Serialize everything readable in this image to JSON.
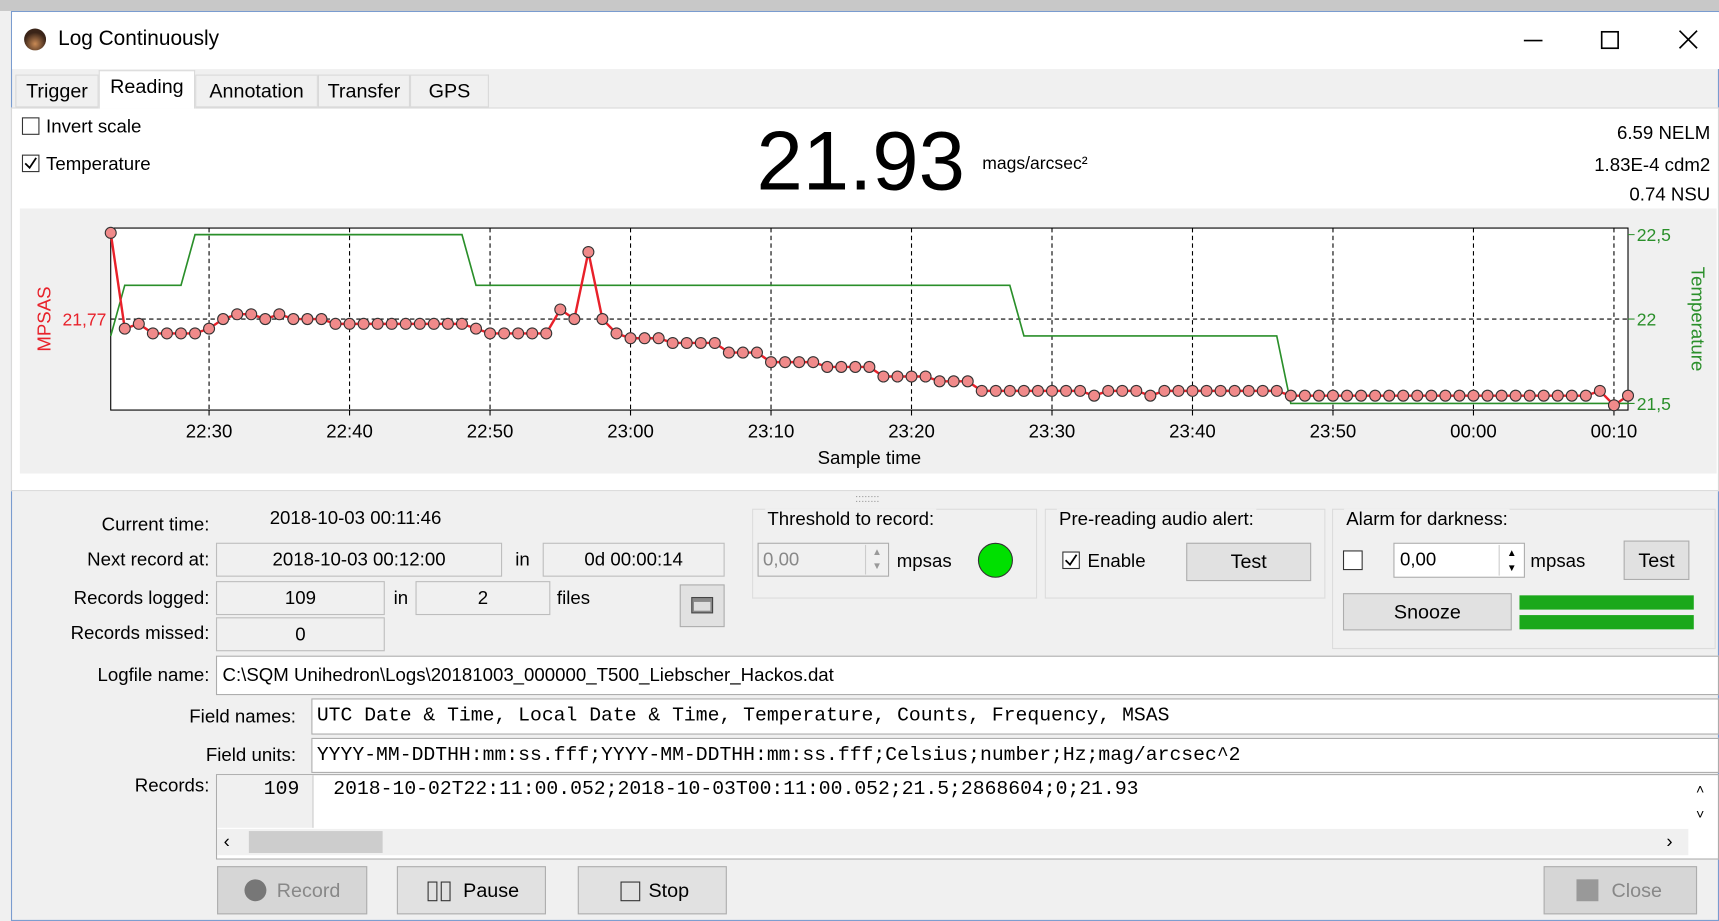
{
  "window": {
    "title": "Log Continuously",
    "tabs": [
      "Trigger",
      "Reading",
      "Annotation",
      "Transfer",
      "GPS"
    ],
    "active_tab": 1
  },
  "reading": {
    "invert_scale": {
      "label": "Invert scale",
      "checked": false
    },
    "temperature": {
      "label": "Temperature",
      "checked": true
    },
    "value": "21.93",
    "unit": "mags/arcsec²",
    "nelm": "6.59 NELM",
    "cdm2": "1.83E-4 cdm2",
    "nsu": "0.74 NSU"
  },
  "chart_data": {
    "type": "line",
    "xlabel": "Sample time",
    "ylabel": "MPSAS",
    "y2label": "Temperature",
    "grid": true,
    "x": [
      "22:23",
      "22:24",
      "22:25",
      "22:26",
      "22:27",
      "22:28",
      "22:29",
      "22:30",
      "22:31",
      "22:32",
      "22:33",
      "22:34",
      "22:35",
      "22:36",
      "22:37",
      "22:38",
      "22:39",
      "22:40",
      "22:41",
      "22:42",
      "22:43",
      "22:44",
      "22:45",
      "22:46",
      "22:47",
      "22:48",
      "22:49",
      "22:50",
      "22:51",
      "22:52",
      "22:53",
      "22:54",
      "22:55",
      "22:56",
      "22:57",
      "22:58",
      "22:59",
      "23:00",
      "23:01",
      "23:02",
      "23:03",
      "23:04",
      "23:05",
      "23:06",
      "23:07",
      "23:08",
      "23:09",
      "23:10",
      "23:11",
      "23:12",
      "23:13",
      "23:14",
      "23:15",
      "23:16",
      "23:17",
      "23:18",
      "23:19",
      "23:20",
      "23:21",
      "23:22",
      "23:23",
      "23:24",
      "23:25",
      "23:26",
      "23:27",
      "23:28",
      "23:29",
      "23:30",
      "23:31",
      "23:32",
      "23:33",
      "23:34",
      "23:35",
      "23:36",
      "23:37",
      "23:38",
      "23:39",
      "23:40",
      "23:41",
      "23:42",
      "23:43",
      "23:44",
      "23:45",
      "23:46",
      "23:47",
      "23:48",
      "23:49",
      "23:50",
      "23:51",
      "23:52",
      "23:53",
      "23:54",
      "23:55",
      "23:56",
      "23:57",
      "23:58",
      "23:59",
      "00:00",
      "00:01",
      "00:02",
      "00:03",
      "00:04",
      "00:05",
      "00:06",
      "00:07",
      "00:08",
      "00:09",
      "00:10",
      "00:11"
    ],
    "series": [
      {
        "name": "MPSAS",
        "color": "#e8212a",
        "marker_color": "#f08a8a",
        "values": [
          21.59,
          21.79,
          21.78,
          21.8,
          21.8,
          21.8,
          21.8,
          21.79,
          21.77,
          21.76,
          21.76,
          21.77,
          21.76,
          21.77,
          21.77,
          21.77,
          21.78,
          21.78,
          21.78,
          21.78,
          21.78,
          21.78,
          21.78,
          21.78,
          21.78,
          21.78,
          21.79,
          21.8,
          21.8,
          21.8,
          21.8,
          21.8,
          21.75,
          21.77,
          21.63,
          21.77,
          21.8,
          21.81,
          21.81,
          21.81,
          21.82,
          21.82,
          21.82,
          21.82,
          21.84,
          21.84,
          21.84,
          21.86,
          21.86,
          21.86,
          21.86,
          21.87,
          21.87,
          21.87,
          21.87,
          21.89,
          21.89,
          21.89,
          21.89,
          21.9,
          21.9,
          21.9,
          21.92,
          21.92,
          21.92,
          21.92,
          21.92,
          21.92,
          21.92,
          21.92,
          21.93,
          21.92,
          21.92,
          21.92,
          21.93,
          21.92,
          21.92,
          21.92,
          21.92,
          21.92,
          21.92,
          21.92,
          21.92,
          21.92,
          21.93,
          21.93,
          21.93,
          21.93,
          21.93,
          21.93,
          21.93,
          21.93,
          21.93,
          21.93,
          21.93,
          21.93,
          21.93,
          21.93,
          21.93,
          21.93,
          21.93,
          21.93,
          21.93,
          21.93,
          21.93,
          21.93,
          21.92,
          21.95,
          21.93
        ]
      },
      {
        "name": "Temperature",
        "color": "#2a8f2a",
        "axis": "y2",
        "values": [
          21.9,
          22.2,
          22.2,
          22.2,
          22.2,
          22.2,
          22.5,
          22.5,
          22.5,
          22.5,
          22.5,
          22.5,
          22.5,
          22.5,
          22.5,
          22.5,
          22.5,
          22.5,
          22.5,
          22.5,
          22.5,
          22.5,
          22.5,
          22.5,
          22.5,
          22.5,
          22.2,
          22.2,
          22.2,
          22.2,
          22.2,
          22.2,
          22.2,
          22.2,
          22.2,
          22.2,
          22.2,
          22.2,
          22.2,
          22.2,
          22.2,
          22.2,
          22.2,
          22.2,
          22.2,
          22.2,
          22.2,
          22.2,
          22.2,
          22.2,
          22.2,
          22.2,
          22.2,
          22.2,
          22.2,
          22.2,
          22.2,
          22.2,
          22.2,
          22.2,
          22.2,
          22.2,
          22.2,
          22.2,
          22.2,
          21.9,
          21.9,
          21.9,
          21.9,
          21.9,
          21.9,
          21.9,
          21.9,
          21.9,
          21.9,
          21.9,
          21.9,
          21.9,
          21.9,
          21.9,
          21.9,
          21.9,
          21.9,
          21.9,
          21.5,
          21.5,
          21.5,
          21.5,
          21.5,
          21.5,
          21.5,
          21.5,
          21.5,
          21.5,
          21.5,
          21.5,
          21.5,
          21.5,
          21.5,
          21.5,
          21.5,
          21.5,
          21.5,
          21.5,
          21.5,
          21.5,
          21.5,
          21.5,
          21.5
        ]
      }
    ],
    "xlim": [
      "22:23",
      "00:11"
    ],
    "xticks": [
      "22:30",
      "22:40",
      "22:50",
      "23:00",
      "23:10",
      "23:20",
      "23:30",
      "23:40",
      "23:50",
      "00:00",
      "00:10"
    ],
    "ylim": [
      21.96,
      21.58
    ],
    "yticks": [
      {
        "value": 21.77,
        "label": "21,77"
      }
    ],
    "y2lim": [
      21.461,
      22.539
    ],
    "y2ticks": [
      {
        "value": 22.5,
        "label": "22,5"
      },
      22,
      {
        "value": 21.5,
        "label": "21,5"
      }
    ]
  },
  "status": {
    "current_time": {
      "label": "Current time:",
      "value": "2018-10-03 00:11:46"
    },
    "next_record": {
      "label": "Next record at:",
      "value": "2018-10-03 00:12:00",
      "in": "in",
      "remaining": "0d 00:00:14"
    },
    "records_logged": {
      "label": "Records logged:",
      "value": "109",
      "in": "in",
      "files_count": "2",
      "files": "files"
    },
    "records_missed": {
      "label": "Records missed:",
      "value": "0"
    },
    "logfile": {
      "label": "Logfile name:",
      "value": "C:\\SQM Unihedron\\Logs\\20181003_000000_T500_Liebscher_Hackos.dat"
    },
    "field_names": {
      "label": "Field names:",
      "value": "UTC Date & Time, Local Date & Time, Temperature, Counts, Frequency, MSAS"
    },
    "field_units": {
      "label": "Field units:",
      "value": "YYYY-MM-DDTHH:mm:ss.fff;YYYY-MM-DDTHH:mm:ss.fff;Celsius;number;Hz;mag/arcsec^2"
    },
    "records": {
      "label": "Records:",
      "line_number": "109",
      "line": "2018-10-02T22:11:00.052;2018-10-03T00:11:00.052;21.5;2868604;0;21.93"
    }
  },
  "threshold": {
    "title": "Threshold to record:",
    "value": "0,00",
    "unit": "mpsas"
  },
  "audio_alert": {
    "title": "Pre-reading audio alert:",
    "enable": {
      "label": "Enable",
      "checked": true
    },
    "test": "Test"
  },
  "alarm": {
    "title": "Alarm for darkness:",
    "checked": false,
    "value": "0,00",
    "unit": "mpsas",
    "test": "Test",
    "snooze": "Snooze"
  },
  "buttons": {
    "record": "Record",
    "pause": "Pause",
    "stop": "Stop",
    "close": "Close"
  }
}
